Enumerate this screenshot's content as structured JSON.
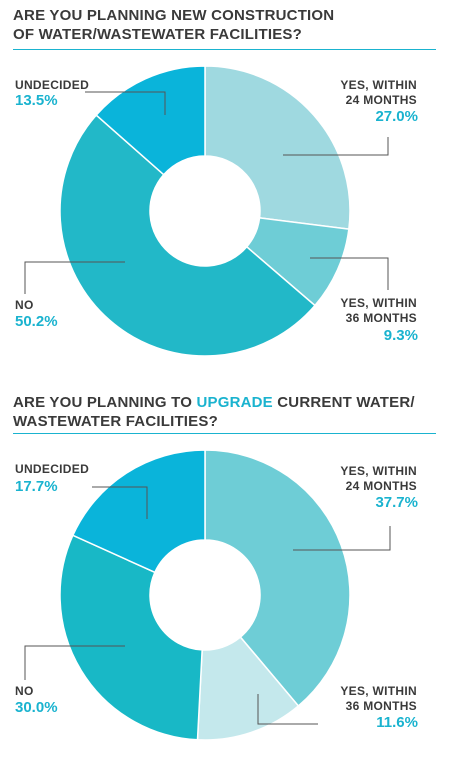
{
  "chart_data": [
    {
      "type": "pie",
      "title_line1": "ARE YOU PLANNING NEW CONSTRUCTION",
      "title_line2": "OF WATER/WASTEWATER FACILITIES?",
      "slices": [
        {
          "key": "yes24",
          "label1": "YES, WITHIN",
          "label2": "24 MONTHS",
          "value": 27.0,
          "display": "27.0%",
          "color": "#9fd9e0"
        },
        {
          "key": "yes36",
          "label1": "YES, WITHIN",
          "label2": "36 MONTHS",
          "value": 9.3,
          "display": "9.3%",
          "color": "#6ecdd6"
        },
        {
          "key": "no",
          "label1": "NO",
          "label2": "",
          "value": 50.2,
          "display": "50.2%",
          "color": "#22b8c8"
        },
        {
          "key": "undecided",
          "label1": "UNDECIDED",
          "label2": "",
          "value": 13.5,
          "display": "13.5%",
          "color": "#0ab4da"
        }
      ]
    },
    {
      "type": "pie",
      "title_line1_a": "ARE YOU PLANNING TO ",
      "title_highlight": "UPGRADE",
      "title_line1_b": " CURRENT WATER/",
      "title_line2": "WASTEWATER FACILITIES?",
      "slices": [
        {
          "key": "yes24",
          "label1": "YES, WITHIN",
          "label2": "24 MONTHS",
          "value": 37.7,
          "display": "37.7%",
          "color": "#6ecdd6"
        },
        {
          "key": "yes36",
          "label1": "YES, WITHIN",
          "label2": "36 MONTHS",
          "value": 11.6,
          "display": "11.6%",
          "color": "#c4e8ec"
        },
        {
          "key": "no",
          "label1": "NO",
          "label2": "",
          "value": 30.0,
          "display": "30.0%",
          "color": "#18b8c6"
        },
        {
          "key": "undecided",
          "label1": "UNDECIDED",
          "label2": "",
          "value": 17.7,
          "display": "17.7%",
          "color": "#0ab4da"
        }
      ]
    }
  ]
}
